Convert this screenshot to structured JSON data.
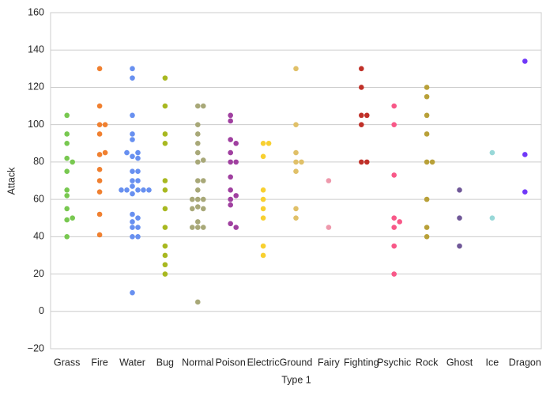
{
  "chart_data": {
    "type": "swarm",
    "x_label": "Type 1",
    "y_label": "Attack",
    "categories": [
      "Grass",
      "Fire",
      "Water",
      "Bug",
      "Normal",
      "Poison",
      "Electric",
      "Ground",
      "Fairy",
      "Fighting",
      "Psychic",
      "Rock",
      "Ghost",
      "Ice",
      "Dragon"
    ],
    "colors": [
      "#78C850",
      "#F08030",
      "#6890F0",
      "#A8B820",
      "#A8A878",
      "#A040A0",
      "#F8D030",
      "#E0C068",
      "#EE99AC",
      "#C03028",
      "#F85888",
      "#B8A038",
      "#705898",
      "#98D8D8",
      "#7038F8"
    ],
    "values": [
      [
        49,
        62,
        82,
        50,
        65,
        80,
        75,
        90,
        105,
        40,
        95,
        55
      ],
      [
        52,
        64,
        84,
        41,
        76,
        70,
        110,
        85,
        100,
        95,
        130,
        100
      ],
      [
        48,
        63,
        83,
        52,
        82,
        50,
        65,
        85,
        40,
        70,
        65,
        75,
        45,
        70,
        65,
        95,
        105,
        130,
        40,
        65,
        67,
        92,
        45,
        75,
        10,
        125,
        85,
        65
      ],
      [
        30,
        20,
        45,
        35,
        25,
        90,
        70,
        95,
        55,
        65,
        110,
        125
      ],
      [
        45,
        60,
        80,
        56,
        81,
        60,
        90,
        45,
        70,
        45,
        70,
        65,
        85,
        110,
        55,
        5,
        95,
        100,
        48,
        55,
        60,
        110
      ],
      [
        60,
        85,
        47,
        62,
        92,
        57,
        72,
        102,
        45,
        80,
        80,
        105,
        65,
        90
      ],
      [
        55,
        90,
        35,
        60,
        30,
        50,
        83,
        65,
        90
      ],
      [
        75,
        100,
        55,
        80,
        50,
        80,
        85,
        130
      ],
      [
        45,
        70
      ],
      [
        80,
        105,
        80,
        100,
        130,
        120,
        105
      ],
      [
        20,
        35,
        50,
        48,
        73,
        45,
        110,
        100
      ],
      [
        80,
        95,
        120,
        45,
        40,
        60,
        80,
        115,
        105
      ],
      [
        35,
        50,
        65
      ],
      [
        50,
        85
      ],
      [
        64,
        84,
        134
      ]
    ],
    "ylim": [
      -20,
      160
    ],
    "yticks": [
      {
        "value": -20,
        "label": "−20"
      },
      0,
      20,
      40,
      60,
      80,
      100,
      120,
      140,
      160
    ],
    "grid": true
  }
}
